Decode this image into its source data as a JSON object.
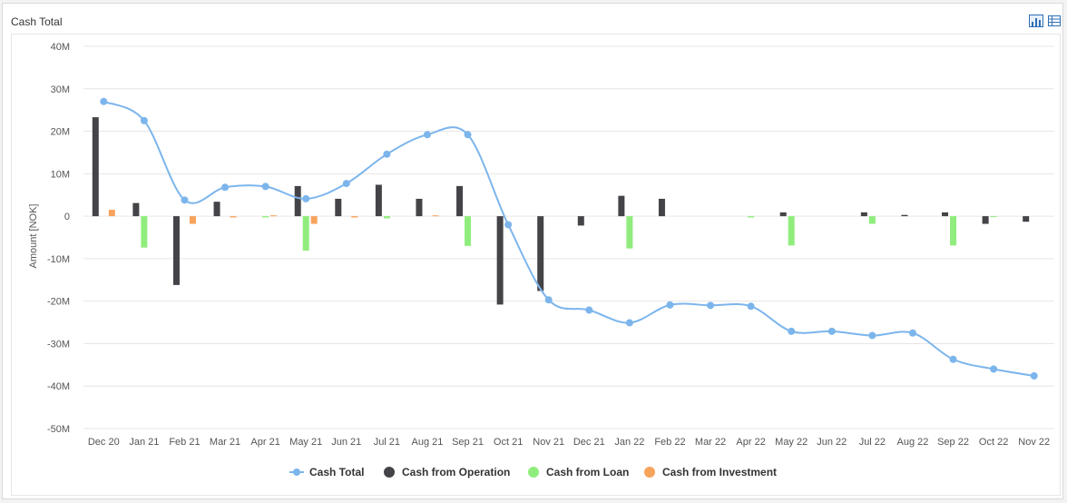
{
  "panel": {
    "title": "Cash Total",
    "chart_view_icon": "bar-chart-icon",
    "table_view_icon": "table-icon"
  },
  "colors": {
    "cash_total": "#7cb5ec",
    "operation": "#434348",
    "loan": "#90ed7d",
    "investment": "#f7a35c",
    "grid": "#e6e6e6",
    "active_button": "#2f6fb6"
  },
  "chart_data": {
    "type": "bar",
    "title": "",
    "xlabel": "",
    "ylabel": "Amount [NOK]",
    "ylim": [
      -50,
      40
    ],
    "y_unit": "M",
    "y_ticks": [
      "40M",
      "30M",
      "20M",
      "10M",
      "0",
      "-10M",
      "-20M",
      "-30M",
      "-40M",
      "-50M"
    ],
    "y_tick_values": [
      40,
      30,
      20,
      10,
      0,
      -10,
      -20,
      -30,
      -40,
      -50
    ],
    "grid": true,
    "legend_position": "bottom-center",
    "categories": [
      "Dec 20",
      "Jan 21",
      "Feb 21",
      "Mar 21",
      "Apr 21",
      "May 21",
      "Jun 21",
      "Jul 21",
      "Aug 21",
      "Sep 21",
      "Oct 21",
      "Nov 21",
      "Dec 21",
      "Jan 22",
      "Feb 22",
      "Mar 22",
      "Apr 22",
      "May 22",
      "Jun 22",
      "Jul 22",
      "Aug 22",
      "Sep 22",
      "Oct 22",
      "Nov 22"
    ],
    "series": [
      {
        "name": "Cash Total",
        "kind": "spline",
        "color": "#7cb5ec",
        "values": [
          27,
          22.5,
          3.8,
          6.8,
          7,
          4.1,
          7.7,
          14.6,
          19.2,
          19.2,
          -2,
          -19.7,
          -22.1,
          -25.1,
          -20.9,
          -21,
          -21.2,
          -27.1,
          -27.1,
          -28.1,
          -27.5,
          -33.7,
          -36,
          -37.6
        ]
      },
      {
        "name": "Cash from Operation",
        "kind": "column",
        "color": "#434348",
        "values": [
          23.3,
          3.1,
          -16.2,
          3.4,
          0,
          7.1,
          4.1,
          7.4,
          4.1,
          7.1,
          -20.8,
          -17.6,
          -2.2,
          4.8,
          4.1,
          0,
          0,
          0.9,
          0,
          0.9,
          0.3,
          0.9,
          -1.8,
          -1.3
        ]
      },
      {
        "name": "Cash from Loan",
        "kind": "column",
        "color": "#90ed7d",
        "values": [
          0,
          -7.4,
          0,
          0,
          -0.3,
          -8.1,
          0,
          -0.5,
          0,
          -7,
          0,
          0,
          0,
          -7.6,
          0,
          0,
          -0.3,
          -6.9,
          0,
          -1.8,
          0,
          -6.9,
          -0.2,
          0
        ]
      },
      {
        "name": "Cash from Investment",
        "kind": "column",
        "color": "#f7a35c",
        "values": [
          1.5,
          0,
          -1.8,
          -0.3,
          0.2,
          -1.8,
          -0.3,
          0,
          0.2,
          0,
          0,
          0,
          0,
          0,
          0,
          0,
          0,
          0,
          0,
          0,
          0,
          0,
          0,
          0
        ]
      }
    ]
  }
}
